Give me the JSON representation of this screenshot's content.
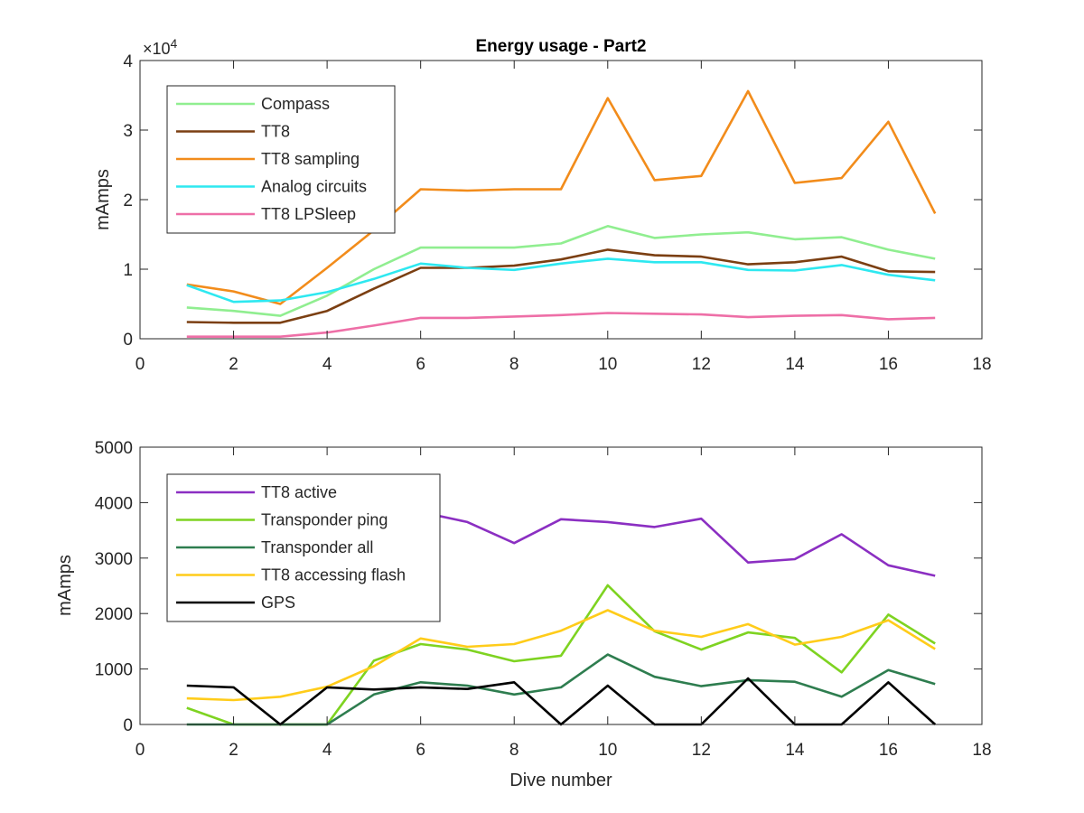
{
  "figure": {
    "background": "#ffffff"
  },
  "chart_data": [
    {
      "type": "line",
      "title": "Energy usage - Part2",
      "xlabel": "",
      "ylabel": "mAmps",
      "xlim": [
        0,
        18
      ],
      "ylim": [
        0,
        40000
      ],
      "xticks": [
        0,
        2,
        4,
        6,
        8,
        10,
        12,
        14,
        16,
        18
      ],
      "yticks": [
        0,
        10000,
        20000,
        30000,
        40000
      ],
      "yticklabels": [
        "0",
        "1",
        "2",
        "3",
        "4"
      ],
      "exponent_label": {
        "base": "×10",
        "power": "4"
      },
      "legend_position": "top-left",
      "grid": false,
      "x": [
        1,
        2,
        3,
        4,
        5,
        6,
        7,
        8,
        9,
        10,
        11,
        12,
        13,
        14,
        15,
        16,
        17
      ],
      "series": [
        {
          "name": "Compass",
          "color": "#90ee90",
          "values": [
            4500,
            4000,
            3300,
            6200,
            10000,
            13100,
            13100,
            13100,
            13700,
            16200,
            14500,
            15000,
            15300,
            14300,
            14600,
            12800,
            11500
          ]
        },
        {
          "name": "TT8",
          "color": "#7b3f12",
          "values": [
            2400,
            2300,
            2300,
            4000,
            7200,
            10200,
            10200,
            10500,
            11400,
            12800,
            12000,
            11800,
            10700,
            11000,
            11800,
            9700,
            9600
          ]
        },
        {
          "name": "TT8 sampling",
          "color": "#f28c1b",
          "values": [
            7800,
            6800,
            5000,
            10200,
            15600,
            21500,
            21300,
            21500,
            21500,
            34600,
            22800,
            23400,
            35600,
            22400,
            23100,
            31200,
            18000
          ]
        },
        {
          "name": "Analog circuits",
          "color": "#2ee8f0",
          "values": [
            7700,
            5300,
            5500,
            6700,
            8600,
            10800,
            10200,
            9900,
            10800,
            11500,
            11000,
            11000,
            9900,
            9800,
            10600,
            9200,
            8400
          ]
        },
        {
          "name": "TT8 LPSleep",
          "color": "#ee6fa7",
          "values": [
            300,
            300,
            300,
            900,
            1900,
            3000,
            3000,
            3200,
            3400,
            3700,
            3600,
            3500,
            3100,
            3300,
            3400,
            2800,
            3000
          ]
        }
      ]
    },
    {
      "type": "line",
      "title": "",
      "xlabel": "Dive number",
      "ylabel": "mAmps",
      "xlim": [
        0,
        18
      ],
      "ylim": [
        0,
        5000
      ],
      "xticks": [
        0,
        2,
        4,
        6,
        8,
        10,
        12,
        14,
        16,
        18
      ],
      "yticks": [
        0,
        1000,
        2000,
        3000,
        4000,
        5000
      ],
      "yticklabels": [
        "0",
        "1000",
        "2000",
        "3000",
        "4000",
        "5000"
      ],
      "legend_position": "top-left",
      "grid": false,
      "x": [
        1,
        2,
        3,
        4,
        5,
        6,
        7,
        8,
        9,
        10,
        11,
        12,
        13,
        14,
        15,
        16,
        17
      ],
      "series": [
        {
          "name": "TT8 active",
          "color": "#8b2fc2",
          "values": [
            3750,
            3200,
            2600,
            3500,
            3750,
            3830,
            3650,
            3270,
            3700,
            3650,
            3560,
            3710,
            2920,
            2980,
            3430,
            2870,
            2680
          ]
        },
        {
          "name": "Transponder ping",
          "color": "#7ed321",
          "values": [
            300,
            0,
            0,
            0,
            1150,
            1450,
            1350,
            1140,
            1240,
            2510,
            1680,
            1350,
            1660,
            1560,
            940,
            1980,
            1460
          ]
        },
        {
          "name": "Transponder all",
          "color": "#2e7d4f",
          "values": [
            0,
            0,
            0,
            0,
            540,
            760,
            700,
            540,
            670,
            1260,
            860,
            690,
            800,
            770,
            500,
            980,
            730
          ]
        },
        {
          "name": "TT8 accessing flash",
          "color": "#ffcc1a",
          "values": [
            470,
            440,
            500,
            680,
            1050,
            1550,
            1400,
            1450,
            1690,
            2060,
            1690,
            1580,
            1810,
            1440,
            1580,
            1880,
            1360
          ]
        },
        {
          "name": "GPS",
          "color": "#000000",
          "values": [
            700,
            670,
            0,
            670,
            630,
            670,
            640,
            760,
            0,
            700,
            0,
            0,
            830,
            0,
            0,
            760,
            0
          ]
        }
      ]
    }
  ]
}
